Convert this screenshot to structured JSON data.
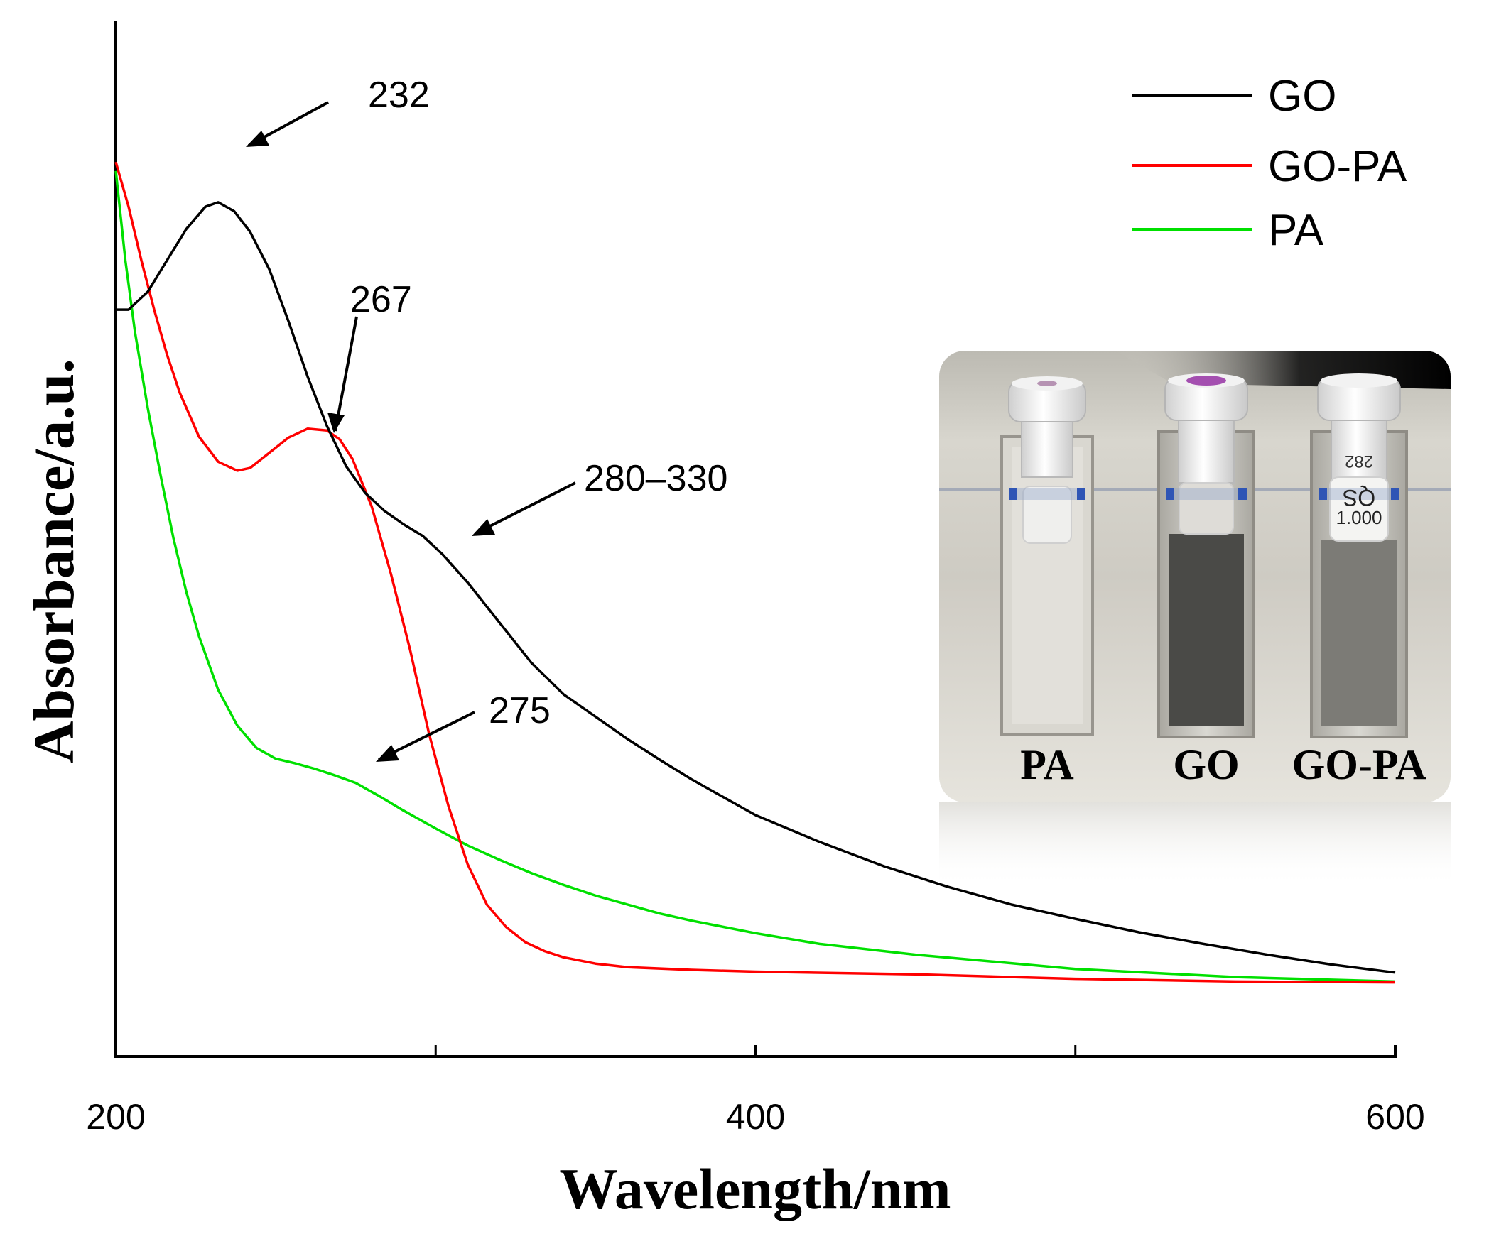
{
  "chart_data": {
    "type": "line",
    "xlabel": "Wavelength/nm",
    "ylabel": "Absorbance/a.u.",
    "xlim": [
      200,
      600
    ],
    "ylim": [
      0,
      1
    ],
    "xticks": [
      200,
      400,
      600
    ],
    "x_tick_labels": [
      "200",
      "400",
      "600"
    ],
    "minor_xticks": [
      300,
      500
    ],
    "grid": false,
    "legend_position": "top-right",
    "series": [
      {
        "name": "GO",
        "color": "#000000",
        "x": [
          200,
          204,
          210,
          216,
          222,
          228,
          232,
          237,
          242,
          248,
          254,
          260,
          266,
          272,
          278,
          284,
          290,
          296,
          302,
          310,
          320,
          330,
          340,
          350,
          360,
          370,
          380,
          390,
          400,
          420,
          440,
          460,
          480,
          500,
          520,
          540,
          560,
          580,
          600
        ],
        "y": [
          0.765,
          0.765,
          0.785,
          0.82,
          0.855,
          0.88,
          0.885,
          0.875,
          0.852,
          0.81,
          0.752,
          0.69,
          0.635,
          0.59,
          0.56,
          0.54,
          0.525,
          0.512,
          0.492,
          0.46,
          0.415,
          0.37,
          0.335,
          0.31,
          0.285,
          0.262,
          0.24,
          0.22,
          0.2,
          0.17,
          0.143,
          0.12,
          0.1,
          0.084,
          0.069,
          0.056,
          0.044,
          0.033,
          0.024
        ]
      },
      {
        "name": "GO-PA",
        "color": "#ff0000",
        "x": [
          200,
          204,
          208,
          212,
          216,
          220,
          226,
          232,
          238,
          242,
          248,
          254,
          260,
          266,
          270,
          274,
          280,
          286,
          292,
          298,
          304,
          310,
          316,
          322,
          328,
          334,
          340,
          350,
          360,
          380,
          400,
          450,
          500,
          550,
          600
        ],
        "y": [
          0.93,
          0.88,
          0.82,
          0.765,
          0.715,
          0.672,
          0.623,
          0.595,
          0.585,
          0.588,
          0.605,
          0.622,
          0.632,
          0.63,
          0.62,
          0.598,
          0.545,
          0.47,
          0.385,
          0.29,
          0.21,
          0.145,
          0.1,
          0.075,
          0.058,
          0.048,
          0.041,
          0.034,
          0.03,
          0.027,
          0.025,
          0.022,
          0.017,
          0.014,
          0.013
        ]
      },
      {
        "name": "PA",
        "color": "#00e000",
        "x": [
          200,
          203,
          206,
          210,
          214,
          218,
          222,
          226,
          232,
          238,
          244,
          250,
          256,
          262,
          268,
          275,
          282,
          290,
          300,
          310,
          320,
          330,
          340,
          350,
          360,
          370,
          380,
          390,
          400,
          420,
          450,
          500,
          550,
          600
        ],
        "y": [
          0.92,
          0.82,
          0.74,
          0.655,
          0.58,
          0.51,
          0.45,
          0.4,
          0.34,
          0.3,
          0.275,
          0.263,
          0.258,
          0.252,
          0.245,
          0.236,
          0.222,
          0.205,
          0.185,
          0.166,
          0.15,
          0.135,
          0.122,
          0.11,
          0.1,
          0.09,
          0.082,
          0.075,
          0.068,
          0.056,
          0.044,
          0.028,
          0.019,
          0.014
        ]
      }
    ],
    "annotations": [
      {
        "text": "232",
        "points_to": {
          "series": "GO",
          "x": 232
        }
      },
      {
        "text": "267",
        "points_to": {
          "series": "GO-PA",
          "x": 267
        }
      },
      {
        "text": "280–330",
        "points_to": {
          "series": "GO",
          "x": 314
        }
      },
      {
        "text": "275",
        "points_to": {
          "series": "PA",
          "x": 282
        }
      }
    ],
    "inset_photo": {
      "labels": [
        "PA",
        "GO",
        "GO-PA"
      ],
      "cuvette_texts": [
        "282",
        "QS",
        "1.000"
      ]
    }
  }
}
